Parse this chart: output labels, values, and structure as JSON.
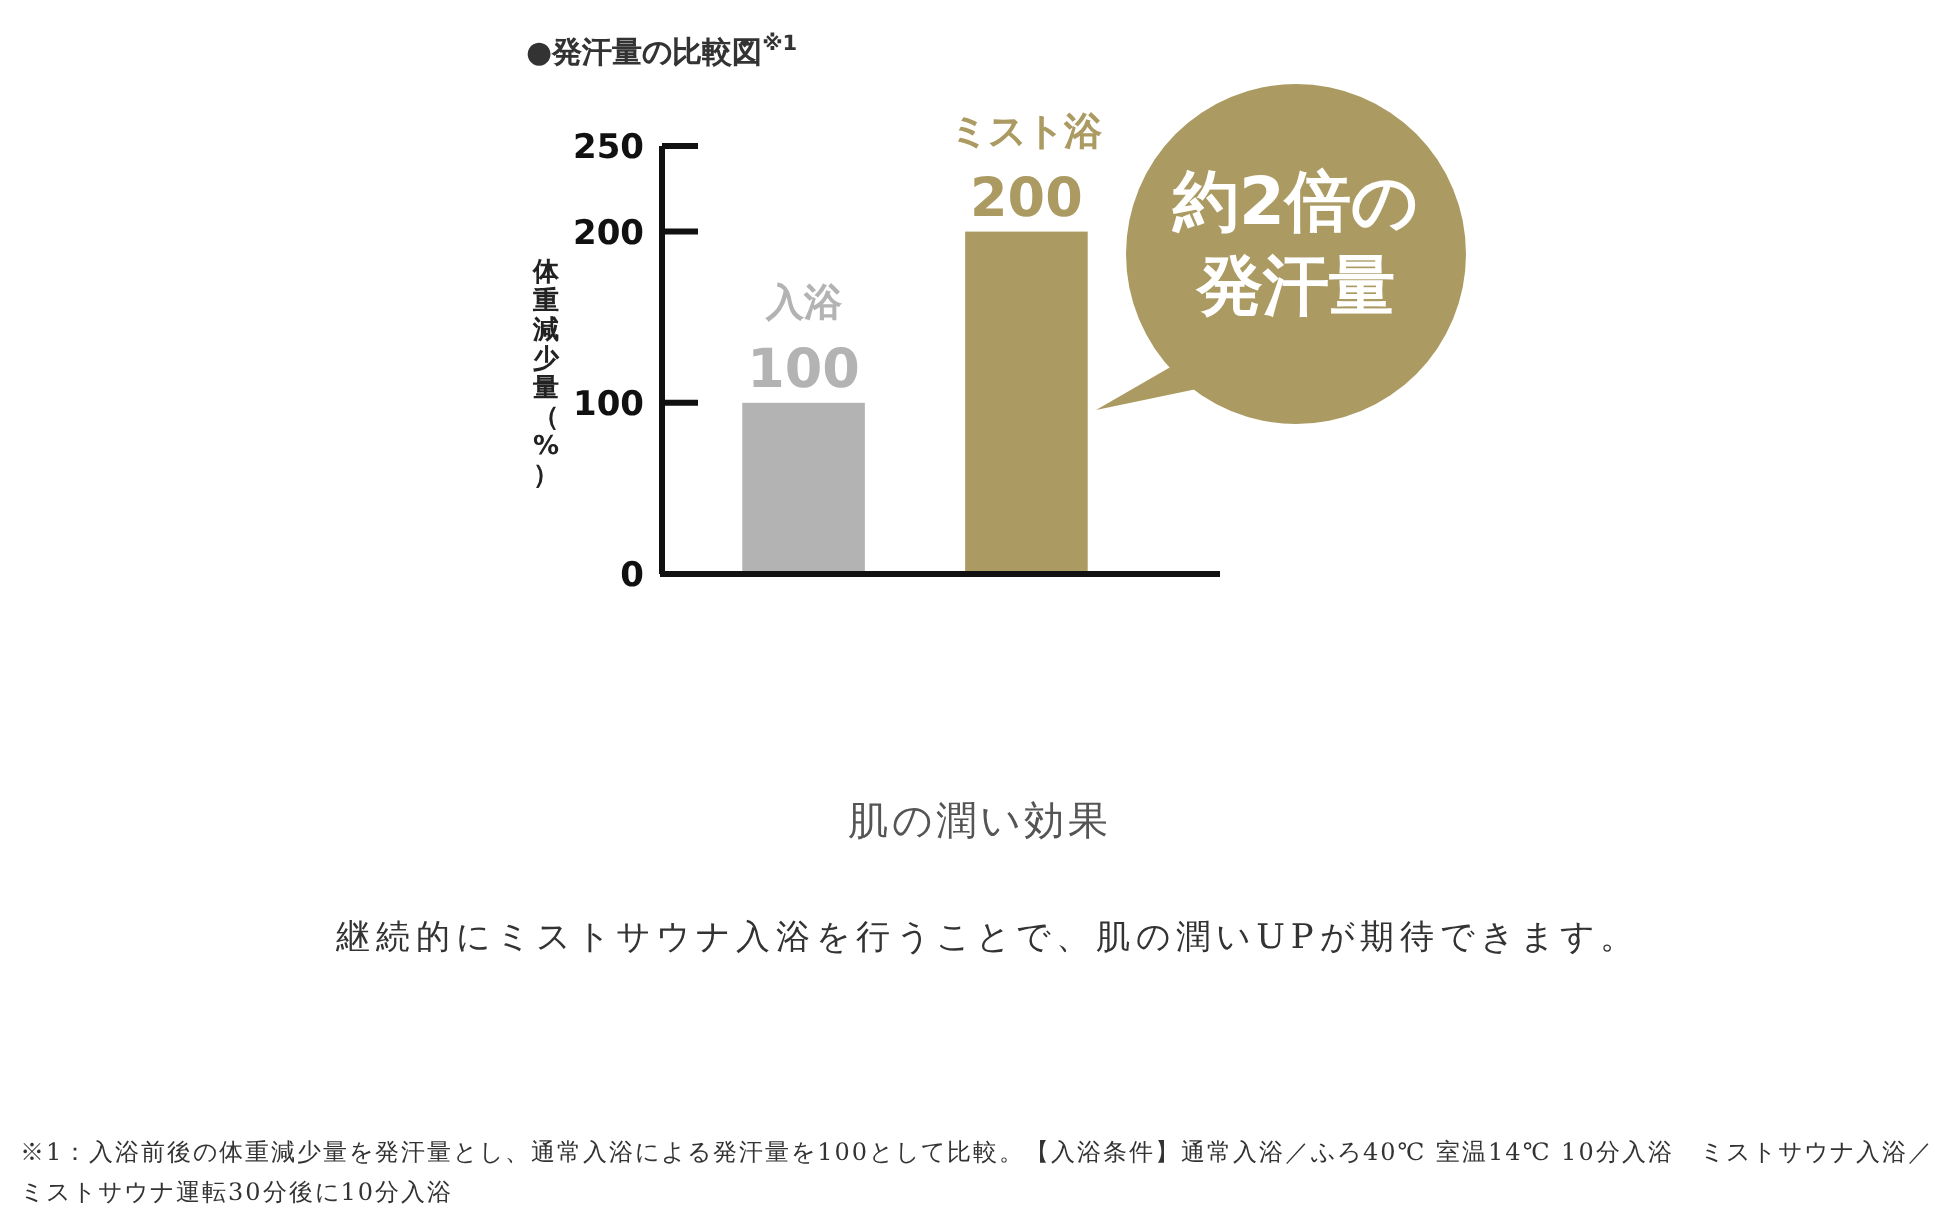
{
  "chart_data": {
    "type": "bar",
    "title": "●発汗量の比較図$^{※1}$",
    "ylabel": "体重減少量（%）",
    "categories": [
      "入浴",
      "ミスト浴"
    ],
    "values": [
      100,
      200
    ],
    "colors": [
      "#b3b3b3",
      "#ab9b62"
    ],
    "ylim": [
      0,
      250
    ],
    "yticks": [
      0,
      100,
      200,
      250
    ],
    "data_labels": true,
    "annotations": [
      "約2倍の",
      "発汗量",
      "肌の潤い効果",
      "継続的にミストサウナ入浴を行うことで、肌の潤いUPが期待できます。",
      "※1：入浴前後の体重減少量を発汗量とし、通常入浴による発汗量を100として比較。【入浴条件】通常入浴／ふろ40℃ 室温14℃ 10分入浴　ミストサウナ入浴／ミストサウナ運転30分後に10分入浴"
    ]
  }
}
